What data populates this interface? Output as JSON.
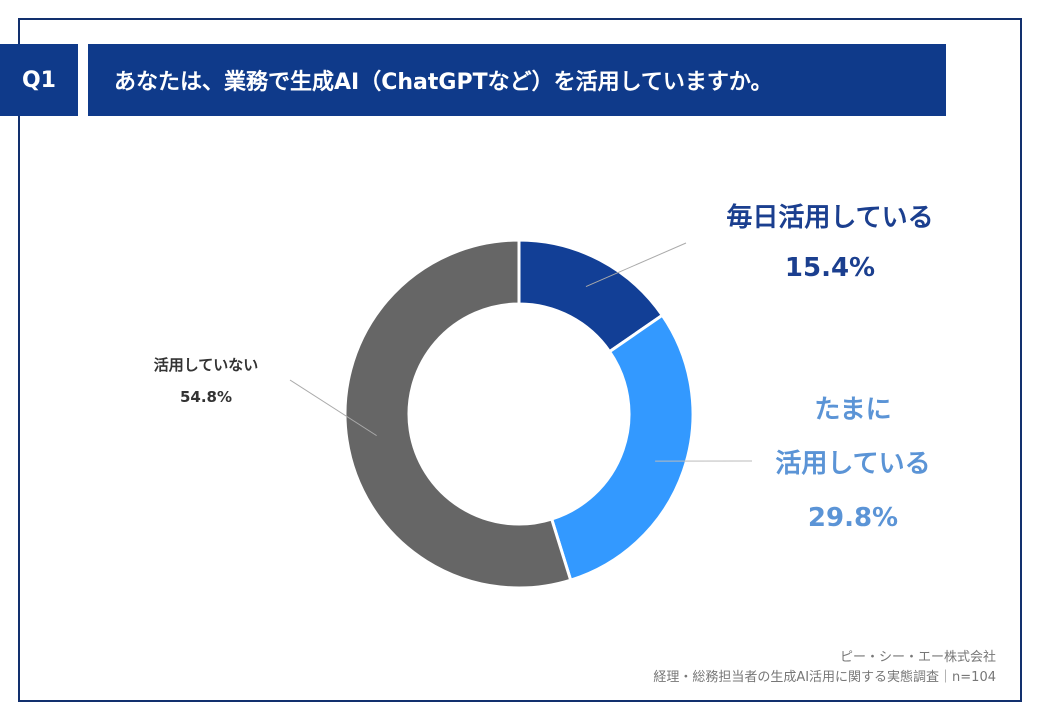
{
  "header": {
    "question_no": "Q1",
    "question_text": "あなたは、業務で生成AI（ChatGPTなど）を活用していますか。"
  },
  "chart_data": {
    "type": "pie",
    "style": "donut",
    "unit": "%",
    "slices": [
      {
        "label_lines": [
          "毎日活用している"
        ],
        "value": 15.4,
        "value_text": "15.4%",
        "color": "#123f96"
      },
      {
        "label_lines": [
          "たまに",
          "活用している"
        ],
        "value": 29.8,
        "value_text": "29.8%",
        "color": "#3399ff"
      },
      {
        "label_lines": [
          "活用していない"
        ],
        "value": 54.8,
        "value_text": "54.8%",
        "color": "#666666"
      }
    ]
  },
  "footer": {
    "company": "ピー・シー・エー株式会社",
    "survey": "経理・総務担当者の生成AI活用に関する実態調査｜n=104"
  },
  "colors": {
    "brand": "#0f3a8a",
    "frame": "#12306e",
    "label_daily": "#1b3f8f",
    "label_sometimes": "#5b94d6",
    "label_none": "#333333"
  }
}
